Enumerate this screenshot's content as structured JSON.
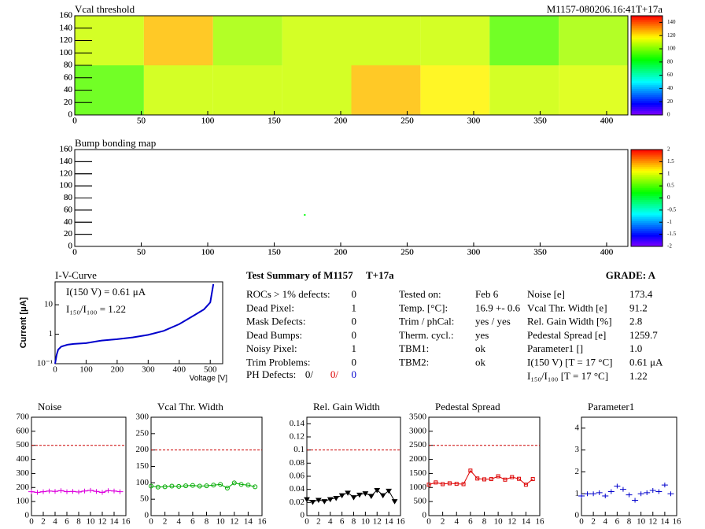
{
  "chart_data": [
    {
      "type": "heatmap",
      "title": "Vcal threshold",
      "subtitle": "M1157-080206.16:41T+17a",
      "x_edges": [
        0,
        52,
        104,
        156,
        208,
        260,
        312,
        364,
        416
      ],
      "y_edges": [
        0,
        80,
        160
      ],
      "values": [
        [
          95,
          110,
          110,
          110,
          125,
          118,
          110,
          112
        ],
        [
          110,
          125,
          105,
          110,
          110,
          110,
          95,
          105
        ]
      ],
      "xlim": [
        0,
        416
      ],
      "xticks": [
        0,
        50,
        100,
        150,
        200,
        250,
        300,
        350,
        400
      ],
      "ylim": [
        0,
        160
      ],
      "yticks": [
        0,
        20,
        40,
        60,
        80,
        100,
        120,
        140,
        160
      ],
      "zlim": [
        0,
        150
      ],
      "zticks": [
        0,
        20,
        40,
        60,
        80,
        100,
        120,
        140
      ]
    },
    {
      "type": "heatmap",
      "title": "Bump bonding map",
      "points": {
        "x": [
          173
        ],
        "y": [
          52
        ],
        "values": [
          0.2
        ]
      },
      "xlim": [
        0,
        416
      ],
      "xticks": [
        0,
        50,
        100,
        150,
        200,
        250,
        300,
        350,
        400
      ],
      "ylim": [
        0,
        160
      ],
      "yticks": [
        0,
        20,
        40,
        60,
        80,
        100,
        120,
        140,
        160
      ],
      "zlim": [
        -2,
        2
      ],
      "zticks": [
        -2,
        -1.5,
        -1,
        -0.5,
        0,
        0.5,
        1,
        1.5,
        2
      ]
    },
    {
      "type": "line",
      "title": "I-V-Curve",
      "x_label": "Voltage [V]",
      "y_label": "Current [μA]",
      "annotations": [
        "I(150 V) = 0.61 μA",
        "I₁₅₀/I₁₀₀ =  1.22"
      ],
      "x": [
        0,
        5,
        10,
        20,
        40,
        60,
        100,
        150,
        200,
        250,
        300,
        350,
        400,
        450,
        480,
        500,
        510
      ],
      "values": [
        0.1,
        0.2,
        0.3,
        0.38,
        0.44,
        0.47,
        0.5,
        0.61,
        0.68,
        0.78,
        0.95,
        1.3,
        2.2,
        4.5,
        7,
        12,
        50
      ],
      "color": "#0000cc",
      "log_y": true,
      "xlim": [
        0,
        540
      ],
      "xticks": [
        0,
        100,
        200,
        300,
        400,
        500
      ],
      "ylim": [
        0.1,
        60
      ],
      "yticks": [
        {
          "value": 0.1,
          "label": "10⁻¹"
        },
        1,
        10
      ]
    },
    {
      "type": "line",
      "title": "Noise",
      "marker": "cross",
      "color": "#dd00dd",
      "threshold": 500,
      "x": [
        0,
        1,
        2,
        3,
        4,
        5,
        6,
        7,
        8,
        9,
        10,
        11,
        12,
        13,
        14,
        15
      ],
      "values": [
        170,
        165,
        170,
        175,
        172,
        178,
        170,
        172,
        168,
        175,
        180,
        172,
        165,
        178,
        175,
        170
      ],
      "xlim": [
        0,
        16
      ],
      "xticks": [
        0,
        2,
        4,
        6,
        8,
        10,
        12,
        14,
        16
      ],
      "ylim": [
        0,
        700
      ],
      "yticks": [
        0,
        100,
        200,
        300,
        400,
        500,
        600,
        700
      ]
    },
    {
      "type": "line",
      "title": "Vcal Thr. Width",
      "marker": "circle",
      "color": "#00aa00",
      "threshold": 200,
      "x": [
        0,
        1,
        2,
        3,
        4,
        5,
        6,
        7,
        8,
        9,
        10,
        11,
        12,
        13,
        14,
        15
      ],
      "values": [
        90,
        87,
        88,
        90,
        89,
        91,
        92,
        90,
        91,
        93,
        95,
        84,
        100,
        95,
        93,
        88
      ],
      "xlim": [
        0,
        16
      ],
      "xticks": [
        0,
        2,
        4,
        6,
        8,
        10,
        12,
        14,
        16
      ],
      "ylim": [
        0,
        300
      ],
      "yticks": [
        0,
        50,
        100,
        150,
        200,
        250,
        300
      ]
    },
    {
      "type": "line",
      "title": "Rel. Gain Width",
      "marker": "triangle",
      "color": "#000000",
      "threshold": 0.1,
      "x": [
        0,
        1,
        2,
        3,
        4,
        5,
        6,
        7,
        8,
        9,
        10,
        11,
        12,
        13,
        14,
        15
      ],
      "values": [
        0.025,
        0.021,
        0.024,
        0.022,
        0.025,
        0.027,
        0.031,
        0.035,
        0.028,
        0.032,
        0.034,
        0.03,
        0.039,
        0.031,
        0.038,
        0.022
      ],
      "xlim": [
        0,
        16
      ],
      "xticks": [
        0,
        2,
        4,
        6,
        8,
        10,
        12,
        14,
        16
      ],
      "ylim": [
        0,
        0.15
      ],
      "yticks": [
        0,
        0.02,
        0.04,
        0.06,
        0.08,
        0.1,
        0.12,
        0.14
      ]
    },
    {
      "type": "line",
      "title": "Pedestal Spread",
      "marker": "square",
      "color": "#dd0000",
      "threshold": 2500,
      "x": [
        0,
        1,
        2,
        3,
        4,
        5,
        6,
        7,
        8,
        9,
        10,
        11,
        12,
        13,
        14,
        15
      ],
      "values": [
        1100,
        1180,
        1120,
        1150,
        1130,
        1120,
        1600,
        1320,
        1290,
        1300,
        1400,
        1280,
        1370,
        1310,
        1100,
        1300
      ],
      "xlim": [
        0,
        16
      ],
      "xticks": [
        0,
        2,
        4,
        6,
        8,
        10,
        12,
        14,
        16
      ],
      "ylim": [
        0,
        3500
      ],
      "yticks": [
        0,
        500,
        1000,
        1500,
        2000,
        2500,
        3000,
        3500
      ]
    },
    {
      "type": "line",
      "title": "Parameter1",
      "marker": "cross",
      "color": "#0000cc",
      "no_line": true,
      "x": [
        0,
        1,
        2,
        3,
        4,
        5,
        6,
        7,
        8,
        9,
        10,
        11,
        12,
        13,
        14,
        15
      ],
      "values": [
        0.9,
        1.0,
        1.0,
        1.05,
        0.9,
        1.1,
        1.35,
        1.2,
        0.95,
        0.7,
        1.0,
        1.05,
        1.15,
        1.1,
        1.4,
        1.0
      ],
      "xlim": [
        0,
        16
      ],
      "xticks": [
        0,
        2,
        4,
        6,
        8,
        10,
        12,
        14,
        16
      ],
      "ylim": [
        0,
        4.5
      ],
      "yticks": [
        0,
        1,
        2,
        3,
        4
      ]
    }
  ],
  "summary": {
    "title": "Test Summary of M1157",
    "tag": "T+17a",
    "grade": "GRADE:  A",
    "defects": [
      [
        "ROCs > 1% defects:",
        "0"
      ],
      [
        "Dead Pixel:",
        "1"
      ],
      [
        "Mask Defects:",
        "0"
      ],
      [
        "Dead Bumps:",
        "0"
      ],
      [
        "Noisy Pixel:",
        "1"
      ],
      [
        "Trim Problems:",
        "0"
      ]
    ],
    "ph_defects": {
      "label": "PH Defects:",
      "values": [
        "0/",
        "0/",
        "0"
      ],
      "colors": [
        "#000000",
        "#dd0000",
        "#0000cc"
      ]
    },
    "conditions": [
      [
        "Tested on:",
        "Feb 6"
      ],
      [
        "Temp. [°C]:",
        "16.9 +- 0.6"
      ],
      [
        "Trim / phCal:",
        "yes / yes"
      ],
      [
        "Therm. cycl.:",
        "yes"
      ],
      [
        "TBM1:",
        "ok"
      ],
      [
        "TBM2:",
        "ok"
      ]
    ],
    "results": [
      [
        "Noise [e]",
        "173.4"
      ],
      [
        "Vcal Thr. Width [e]",
        "91.2"
      ],
      [
        "Rel. Gain Width [%]",
        "2.8"
      ],
      [
        "Pedestal Spread [e]",
        "1259.7"
      ],
      [
        "Parameter1 []",
        "1.0"
      ],
      [
        "I(150 V) [T = 17 °C]",
        "0.61 μA"
      ],
      [
        "I₁₅₀/I₁₀₀  [T = 17 °C]",
        "1.22"
      ]
    ]
  }
}
